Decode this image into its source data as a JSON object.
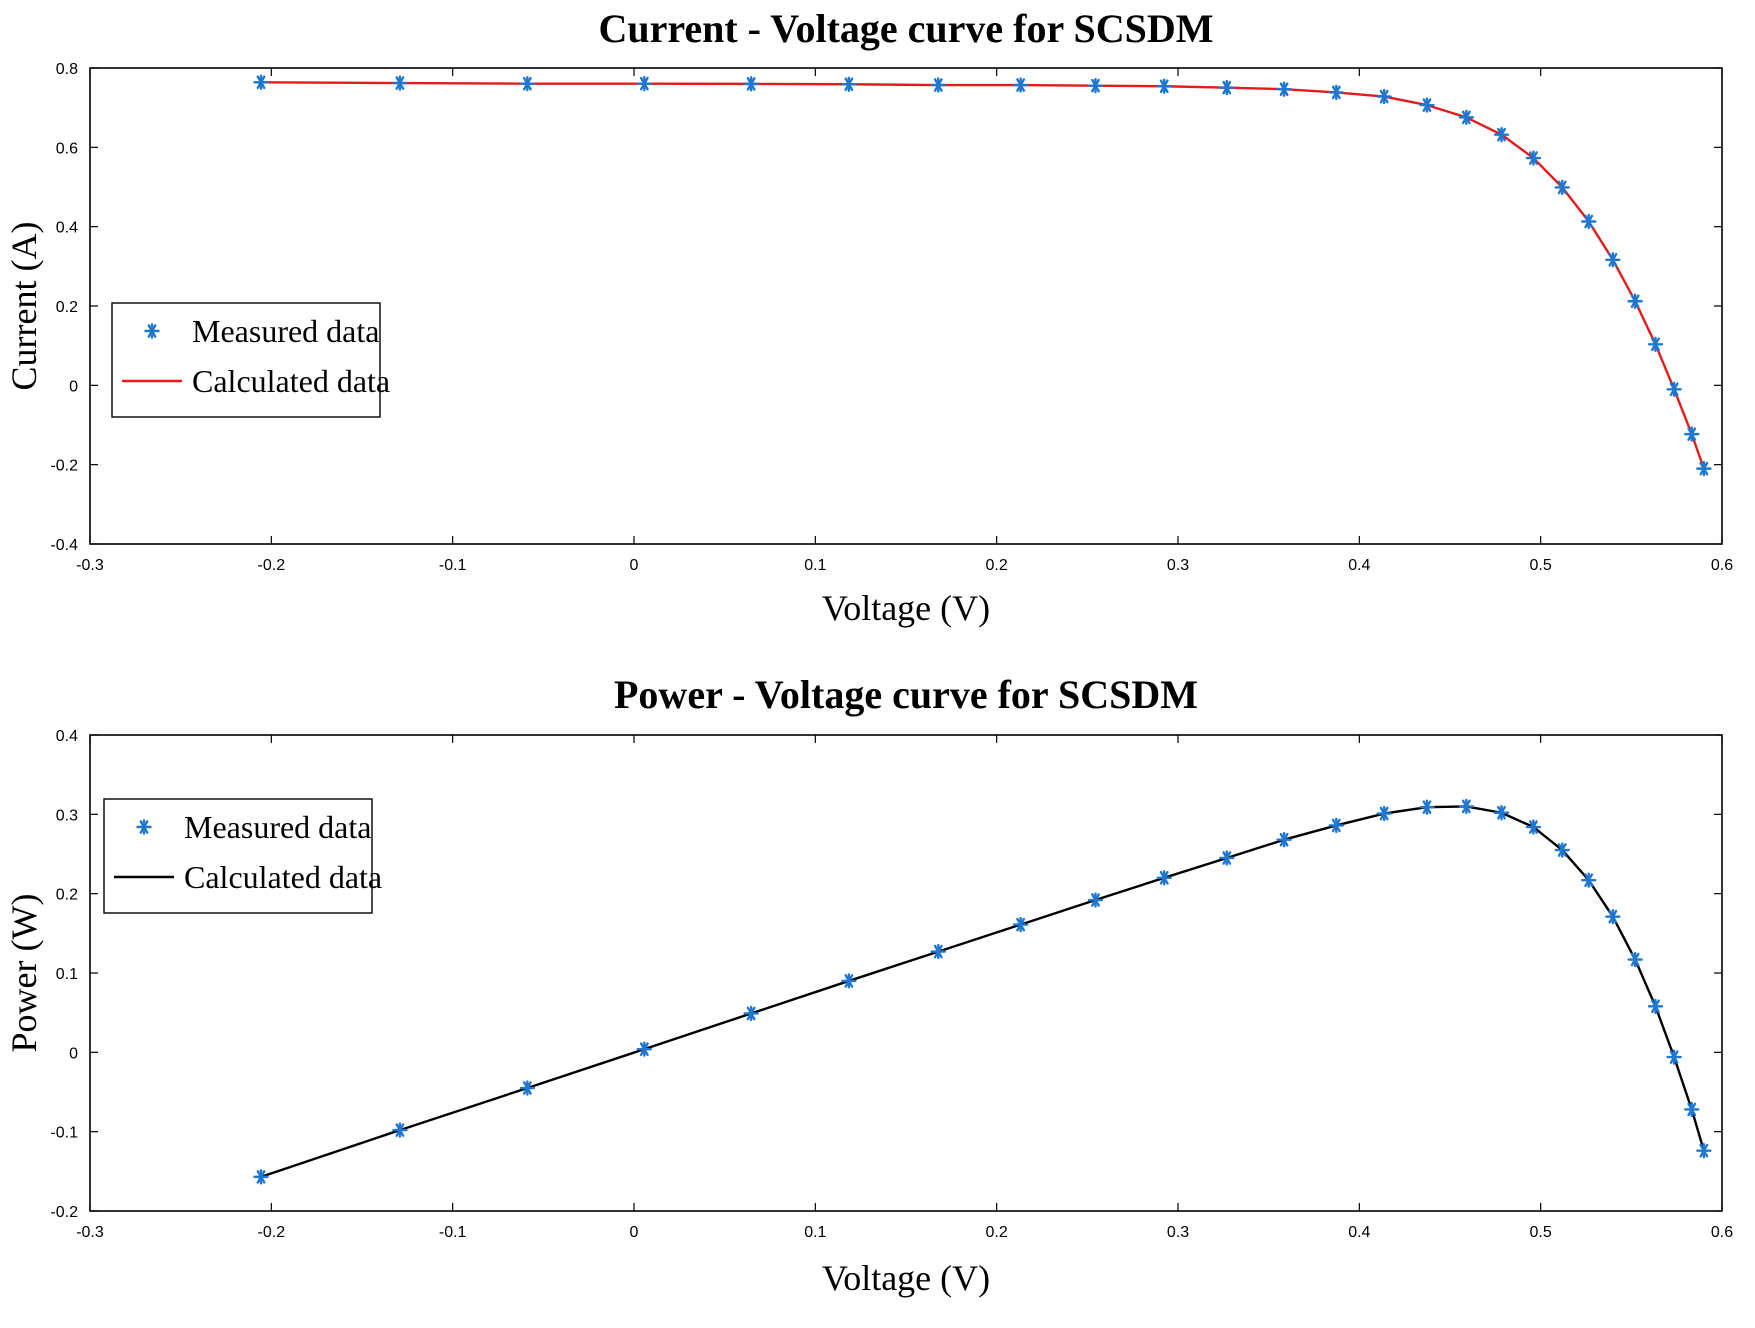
{
  "chart_data": [
    {
      "id": "iv",
      "type": "line",
      "title": "Current - Voltage curve for SCSDM",
      "xlabel": "Voltage (V)",
      "ylabel": "Current (A)",
      "xlim": [
        -0.3,
        0.6
      ],
      "ylim": [
        -0.4,
        0.8
      ],
      "xticks": [
        -0.3,
        -0.2,
        -0.1,
        0,
        0.1,
        0.2,
        0.3,
        0.4,
        0.5,
        0.6
      ],
      "xtick_labels": [
        "-0.3",
        "-0.2",
        "-0.1",
        "0",
        "0.1",
        "0.2",
        "0.3",
        "0.4",
        "0.5",
        "0.6"
      ],
      "yticks": [
        -0.4,
        -0.2,
        0,
        0.2,
        0.4,
        0.6,
        0.8
      ],
      "ytick_labels": [
        "-0.4",
        "-0.2",
        "0",
        "0.2",
        "0.4",
        "0.6",
        "0.8"
      ],
      "grid": false,
      "legend_position": "middle-left",
      "series": [
        {
          "name": "Measured data",
          "kind": "marker",
          "marker": "asterisk",
          "color": "#1f77d0",
          "x": [
            -0.2057,
            -0.1291,
            -0.0588,
            0.0057,
            0.0646,
            0.1185,
            0.1678,
            0.2132,
            0.2545,
            0.2924,
            0.3269,
            0.3585,
            0.3873,
            0.4137,
            0.4373,
            0.459,
            0.4784,
            0.496,
            0.5119,
            0.5265,
            0.5398,
            0.5521,
            0.5633,
            0.5736,
            0.5833,
            0.59
          ],
          "y": [
            0.764,
            0.762,
            0.7605,
            0.7605,
            0.76,
            0.759,
            0.757,
            0.757,
            0.7555,
            0.754,
            0.7505,
            0.7465,
            0.7385,
            0.728,
            0.7065,
            0.6755,
            0.632,
            0.573,
            0.499,
            0.413,
            0.3165,
            0.212,
            0.1035,
            -0.01,
            -0.123,
            -0.21
          ]
        },
        {
          "name": "Calculated data",
          "kind": "line",
          "color": "#e41a1c",
          "x": [
            -0.2057,
            -0.1291,
            -0.0588,
            0.0057,
            0.0646,
            0.1185,
            0.1678,
            0.2132,
            0.2545,
            0.2924,
            0.3269,
            0.3585,
            0.3873,
            0.4137,
            0.4373,
            0.459,
            0.4784,
            0.496,
            0.5119,
            0.5265,
            0.5398,
            0.5521,
            0.5633,
            0.5736,
            0.5833,
            0.59
          ],
          "y": [
            0.764,
            0.762,
            0.7605,
            0.7605,
            0.76,
            0.759,
            0.757,
            0.757,
            0.7555,
            0.754,
            0.7505,
            0.7465,
            0.7385,
            0.728,
            0.7065,
            0.6755,
            0.632,
            0.573,
            0.499,
            0.413,
            0.3165,
            0.212,
            0.1035,
            -0.01,
            -0.123,
            -0.21
          ]
        }
      ]
    },
    {
      "id": "pv",
      "type": "line",
      "title": "Power - Voltage curve for SCSDM",
      "xlabel": "Voltage (V)",
      "ylabel": "Power (W)",
      "xlim": [
        -0.3,
        0.6
      ],
      "ylim": [
        -0.2,
        0.4
      ],
      "xticks": [
        -0.3,
        -0.2,
        -0.1,
        0,
        0.1,
        0.2,
        0.3,
        0.4,
        0.5,
        0.6
      ],
      "xtick_labels": [
        "-0.3",
        "-0.2",
        "-0.1",
        "0",
        "0.1",
        "0.2",
        "0.3",
        "0.4",
        "0.5",
        "0.6"
      ],
      "yticks": [
        -0.2,
        -0.1,
        0,
        0.1,
        0.2,
        0.3,
        0.4
      ],
      "ytick_labels": [
        "-0.2",
        "-0.1",
        "0",
        "0.1",
        "0.2",
        "0.3",
        "0.4"
      ],
      "grid": false,
      "legend_position": "top-left",
      "series": [
        {
          "name": "Measured data",
          "kind": "marker",
          "marker": "asterisk",
          "color": "#1f77d0",
          "x": [
            -0.2057,
            -0.1291,
            -0.0588,
            0.0057,
            0.0646,
            0.1185,
            0.1678,
            0.2132,
            0.2545,
            0.2924,
            0.3269,
            0.3585,
            0.3873,
            0.4137,
            0.4373,
            0.459,
            0.4784,
            0.496,
            0.5119,
            0.5265,
            0.5398,
            0.5521,
            0.5633,
            0.5736,
            0.5833,
            0.59
          ],
          "y": [
            -0.157,
            -0.098,
            -0.045,
            0.004,
            0.049,
            0.09,
            0.127,
            0.161,
            0.192,
            0.22,
            0.245,
            0.268,
            0.286,
            0.301,
            0.309,
            0.31,
            0.302,
            0.284,
            0.255,
            0.217,
            0.171,
            0.117,
            0.058,
            -0.006,
            -0.072,
            -0.124
          ]
        },
        {
          "name": "Calculated data",
          "kind": "line",
          "color": "#000000",
          "x": [
            -0.2057,
            -0.1291,
            -0.0588,
            0.0057,
            0.0646,
            0.1185,
            0.1678,
            0.2132,
            0.2545,
            0.2924,
            0.3269,
            0.3585,
            0.3873,
            0.4137,
            0.4373,
            0.459,
            0.4784,
            0.496,
            0.5119,
            0.5265,
            0.5398,
            0.5521,
            0.5633,
            0.5736,
            0.5833,
            0.59
          ],
          "y": [
            -0.157,
            -0.098,
            -0.045,
            0.004,
            0.049,
            0.09,
            0.127,
            0.161,
            0.192,
            0.22,
            0.245,
            0.268,
            0.286,
            0.301,
            0.309,
            0.31,
            0.302,
            0.284,
            0.255,
            0.217,
            0.171,
            0.117,
            0.058,
            -0.006,
            -0.072,
            -0.124
          ]
        }
      ]
    }
  ]
}
